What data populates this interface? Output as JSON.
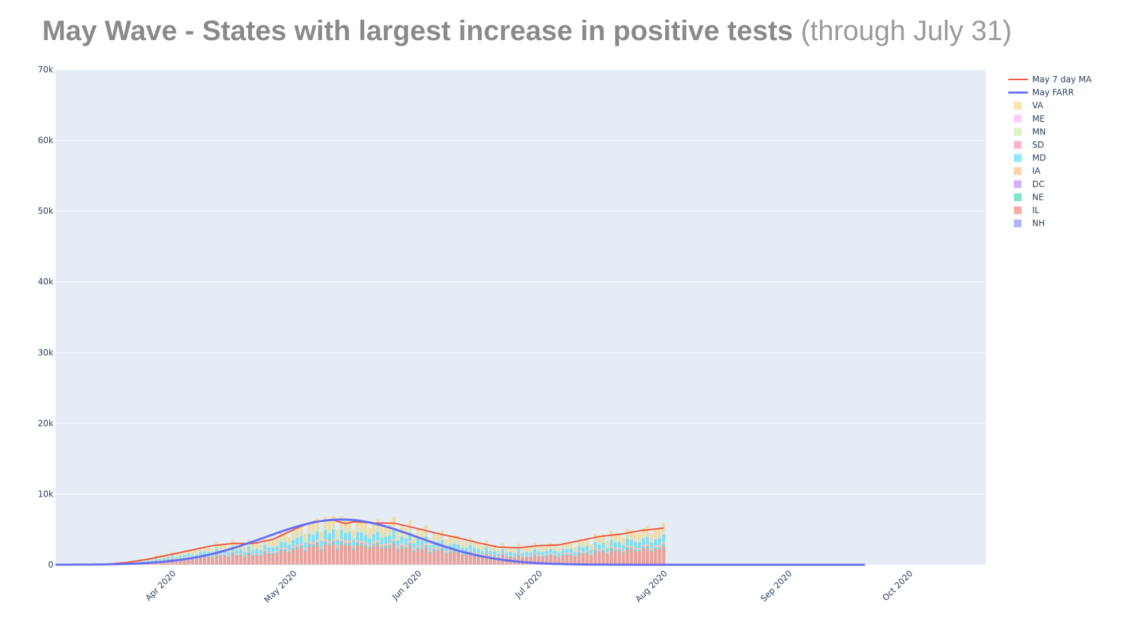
{
  "title_main": "May Wave - States with largest increase in positive tests",
  "title_sub": "(through July 31)",
  "chart_data": {
    "type": "bar",
    "ylim": [
      0,
      70000
    ],
    "y_ticks": [
      0,
      10000,
      20000,
      30000,
      40000,
      50000,
      60000,
      70000
    ],
    "y_tick_labels": [
      "0",
      "10k",
      "20k",
      "30k",
      "40k",
      "50k",
      "60k",
      "70k"
    ],
    "x_range": [
      "2020-03-02",
      "2020-10-19"
    ],
    "x_ticks": [
      "2020-04-01",
      "2020-05-01",
      "2020-06-01",
      "2020-07-01",
      "2020-08-01",
      "2020-09-01",
      "2020-10-01"
    ],
    "x_tick_labels": [
      "Apr 2020",
      "May 2020",
      "Jun 2020",
      "Jul 2020",
      "Aug 2020",
      "Sep 2020",
      "Oct 2020"
    ],
    "barmode": "stack",
    "grid": true,
    "legend_position": "right",
    "bar_start": "2020-03-14",
    "bar_end": "2020-07-31",
    "stack_order_bottom_to_top": [
      "NH",
      "IL",
      "NE",
      "DC",
      "IA",
      "MD",
      "SD",
      "MN",
      "ME",
      "VA"
    ],
    "series": [
      {
        "name": "VA",
        "color": "#FECB52"
      },
      {
        "name": "ME",
        "color": "#FF97FF"
      },
      {
        "name": "MN",
        "color": "#B6E880"
      },
      {
        "name": "SD",
        "color": "#FF6692"
      },
      {
        "name": "MD",
        "color": "#19D3F3"
      },
      {
        "name": "IA",
        "color": "#FFA15A"
      },
      {
        "name": "DC",
        "color": "#AB63FA"
      },
      {
        "name": "NE",
        "color": "#00CC96"
      },
      {
        "name": "IL",
        "color": "#EF553B"
      },
      {
        "name": "NH",
        "color": "#636EFA"
      }
    ],
    "daily_total_anchors": [
      [
        "2020-03-14",
        100
      ],
      [
        "2020-03-20",
        350
      ],
      [
        "2020-03-25",
        900
      ],
      [
        "2020-03-31",
        1600
      ],
      [
        "2020-04-05",
        2100
      ],
      [
        "2020-04-10",
        2700
      ],
      [
        "2020-04-15",
        3000
      ],
      [
        "2020-04-20",
        3000
      ],
      [
        "2020-04-25",
        3600
      ],
      [
        "2020-05-01",
        5000
      ],
      [
        "2020-05-05",
        5800
      ],
      [
        "2020-05-10",
        6300
      ],
      [
        "2020-05-15",
        6000
      ],
      [
        "2020-05-20",
        5800
      ],
      [
        "2020-05-25",
        5800
      ],
      [
        "2020-05-31",
        5000
      ],
      [
        "2020-06-05",
        4400
      ],
      [
        "2020-06-10",
        3800
      ],
      [
        "2020-06-15",
        3200
      ],
      [
        "2020-06-20",
        2600
      ],
      [
        "2020-06-25",
        2500
      ],
      [
        "2020-06-30",
        2700
      ],
      [
        "2020-07-05",
        2800
      ],
      [
        "2020-07-10",
        3200
      ],
      [
        "2020-07-15",
        4000
      ],
      [
        "2020-07-20",
        4400
      ],
      [
        "2020-07-25",
        4800
      ],
      [
        "2020-07-31",
        5200
      ]
    ],
    "state_share": {
      "NH": 0.01,
      "IL": 0.42,
      "NE": 0.04,
      "DC": 0.02,
      "IA": 0.05,
      "MD": 0.17,
      "SD": 0.01,
      "MN": 0.08,
      "ME": 0.01,
      "VA": 0.19
    },
    "lines": [
      {
        "name": "May 7 day MA",
        "color": "#EF553B",
        "width": 2,
        "end": "2020-07-31",
        "points": [
          [
            "2020-03-02",
            0
          ],
          [
            "2020-03-10",
            30
          ],
          [
            "2020-03-15",
            100
          ],
          [
            "2020-03-20",
            350
          ],
          [
            "2020-03-25",
            800
          ],
          [
            "2020-03-31",
            1500
          ],
          [
            "2020-04-05",
            2100
          ],
          [
            "2020-04-10",
            2700
          ],
          [
            "2020-04-15",
            3000
          ],
          [
            "2020-04-20",
            3000
          ],
          [
            "2020-04-25",
            3600
          ],
          [
            "2020-05-01",
            5200
          ],
          [
            "2020-05-05",
            6100
          ],
          [
            "2020-05-10",
            6300
          ],
          [
            "2020-05-13",
            5800
          ],
          [
            "2020-05-15",
            6100
          ],
          [
            "2020-05-20",
            5900
          ],
          [
            "2020-05-25",
            5900
          ],
          [
            "2020-05-31",
            5100
          ],
          [
            "2020-06-05",
            4400
          ],
          [
            "2020-06-10",
            3800
          ],
          [
            "2020-06-15",
            3100
          ],
          [
            "2020-06-20",
            2500
          ],
          [
            "2020-06-25",
            2400
          ],
          [
            "2020-06-30",
            2700
          ],
          [
            "2020-07-05",
            2800
          ],
          [
            "2020-07-10",
            3400
          ],
          [
            "2020-07-15",
            4000
          ],
          [
            "2020-07-20",
            4300
          ],
          [
            "2020-07-25",
            4800
          ],
          [
            "2020-07-31",
            5200
          ]
        ]
      },
      {
        "name": "May FARR",
        "color": "#636EFA",
        "width": 3,
        "start": "2020-03-02",
        "end": "2020-09-19",
        "peak_date": "2020-05-12",
        "peak_value": 6400,
        "sigma_days": 19
      }
    ]
  }
}
